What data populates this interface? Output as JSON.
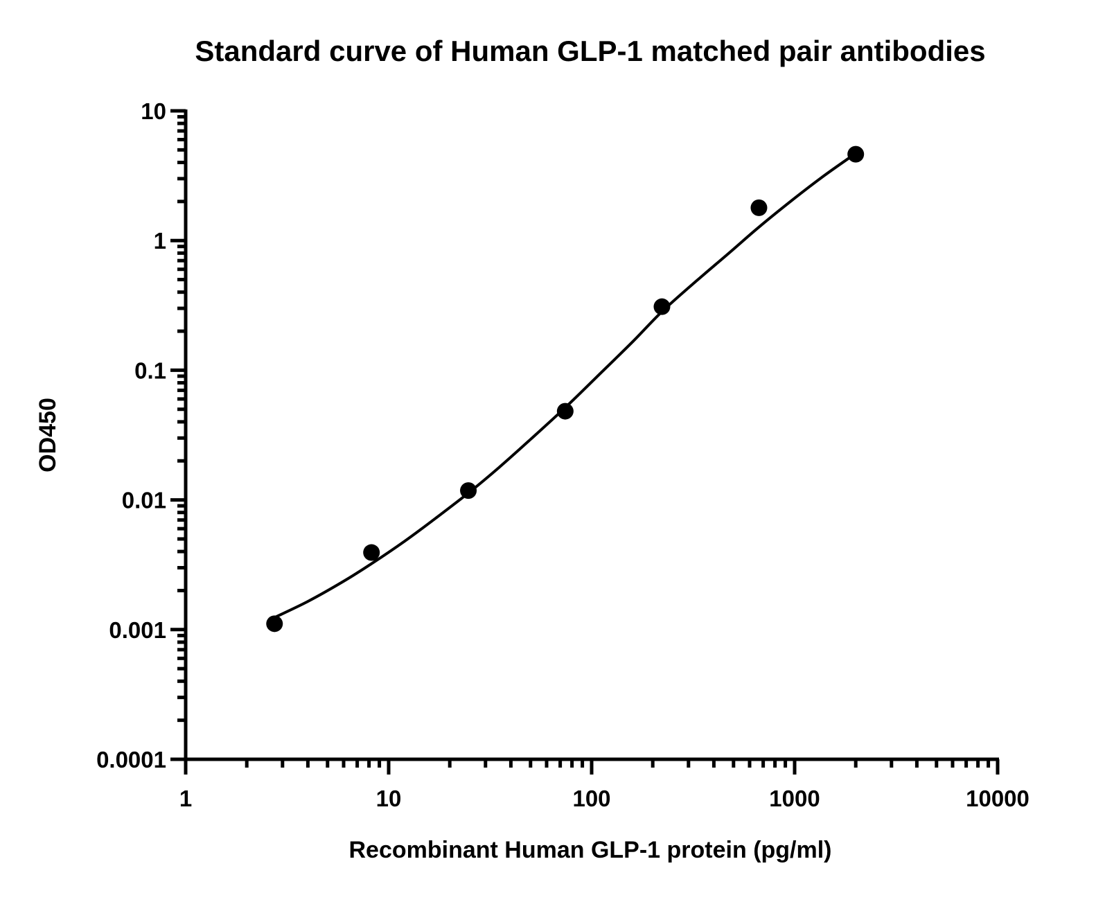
{
  "chart_data": {
    "type": "scatter",
    "title": "Standard curve of Human GLP-1 matched pair antibodies",
    "xlabel": "Recombinant Human GLP-1 protein (pg/ml)",
    "ylabel": "OD450",
    "x_scale": "log",
    "y_scale": "log",
    "xlim": [
      1,
      10000
    ],
    "ylim": [
      0.0001,
      10
    ],
    "x_ticks": [
      {
        "value": 1,
        "label": "1"
      },
      {
        "value": 10,
        "label": "10"
      },
      {
        "value": 100,
        "label": "100"
      },
      {
        "value": 1000,
        "label": "1000"
      },
      {
        "value": 10000,
        "label": "10000"
      }
    ],
    "y_ticks": [
      {
        "value": 0.0001,
        "label": "0.0001"
      },
      {
        "value": 0.001,
        "label": "0.001"
      },
      {
        "value": 0.01,
        "label": "0.01"
      },
      {
        "value": 0.1,
        "label": "0.1"
      },
      {
        "value": 1,
        "label": "1"
      },
      {
        "value": 10,
        "label": "10"
      }
    ],
    "grid": false,
    "series": [
      {
        "x": [
          2.74,
          8.23,
          24.7,
          74.1,
          222,
          667,
          2000
        ],
        "y": [
          0.00111,
          0.00393,
          0.0118,
          0.0483,
          0.309,
          1.79,
          4.63
        ]
      }
    ],
    "fit_curve": {
      "x": [
        2.74,
        4,
        6,
        8.23,
        12,
        17,
        24.7,
        35,
        50,
        74.1,
        110,
        160,
        222,
        330,
        480,
        667,
        1000,
        1400,
        2000
      ],
      "y": [
        0.00124,
        0.00165,
        0.00236,
        0.00322,
        0.00481,
        0.0072,
        0.0113,
        0.0178,
        0.0293,
        0.0515,
        0.094,
        0.167,
        0.283,
        0.492,
        0.812,
        1.27,
        2.12,
        3.17,
        4.7
      ]
    }
  }
}
